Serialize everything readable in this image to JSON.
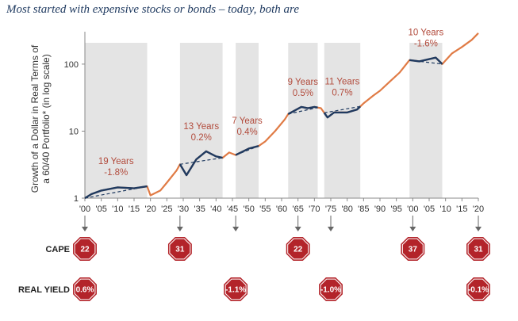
{
  "title": "Most started with expensive stocks or bonds – today, both are",
  "chart_data": {
    "type": "line",
    "title": "Most started with expensive stocks or bonds – today, both are",
    "ylabel": "Growth of a Dollar in Real Terms of a 60/40 Portfolio* (in log scale)",
    "yscale": "log",
    "ylim": [
      1,
      400
    ],
    "xlim": [
      1900,
      2020
    ],
    "x_ticks": [
      "'00",
      "'05",
      "'10",
      "'15",
      "'20",
      "'25",
      "'30",
      "'35",
      "'40",
      "'45",
      "'50",
      "'55",
      "'60",
      "'65",
      "'70",
      "'75",
      "'80",
      "'85",
      "'90",
      "'95",
      "'00",
      "'05",
      "'10",
      "'15",
      "'20"
    ],
    "y_ticks": [
      "1",
      "10",
      "100"
    ],
    "colors": {
      "growth": "#e07b45",
      "flat": "#1f3a60",
      "shade": "#e4e4e4",
      "sign": "#b3242a"
    },
    "series": [
      {
        "points": [
          [
            1900,
            1
          ],
          [
            1902,
            1.15
          ],
          [
            1905,
            1.3
          ],
          [
            1910,
            1.45
          ],
          [
            1915,
            1.4
          ],
          [
            1919,
            1.5
          ],
          [
            1920,
            1.1
          ],
          [
            1923,
            1.3
          ],
          [
            1925,
            1.7
          ],
          [
            1928,
            2.6
          ],
          [
            1929,
            3.2
          ],
          [
            1931,
            2.2
          ],
          [
            1934,
            3.8
          ],
          [
            1937,
            5
          ],
          [
            1940,
            4.2
          ],
          [
            1942,
            4
          ],
          [
            1944,
            4.8
          ],
          [
            1946,
            4.4
          ],
          [
            1950,
            5.5
          ],
          [
            1953,
            6
          ],
          [
            1955,
            7
          ],
          [
            1958,
            10
          ],
          [
            1961,
            15
          ],
          [
            1962,
            18
          ],
          [
            1966,
            23
          ],
          [
            1968,
            22
          ],
          [
            1970,
            23
          ],
          [
            1972,
            22
          ],
          [
            1974,
            16
          ],
          [
            1976,
            19
          ],
          [
            1980,
            19
          ],
          [
            1983,
            21
          ],
          [
            1985,
            26
          ],
          [
            1988,
            34
          ],
          [
            1990,
            40
          ],
          [
            1993,
            55
          ],
          [
            1996,
            75
          ],
          [
            1999,
            115
          ],
          [
            2002,
            110
          ],
          [
            2007,
            125
          ],
          [
            2009,
            100
          ],
          [
            2012,
            145
          ],
          [
            2015,
            180
          ],
          [
            2018,
            230
          ],
          [
            2020,
            290
          ]
        ]
      }
    ],
    "flat_periods": [
      {
        "start": 1900,
        "end": 1919,
        "years_label": "19 Years",
        "return_label": "-1.8%"
      },
      {
        "start": 1929,
        "end": 1942,
        "years_label": "13 Years",
        "return_label": "0.2%"
      },
      {
        "start": 1946,
        "end": 1953,
        "years_label": "7 Years",
        "return_label": "0.4%"
      },
      {
        "start": 1962,
        "end": 1971,
        "years_label": "9 Years",
        "return_label": "0.5%"
      },
      {
        "start": 1973,
        "end": 1984,
        "years_label": "11 Years",
        "return_label": "0.7%"
      },
      {
        "start": 1999,
        "end": 2009,
        "years_label": "10 Years",
        "return_label": "-1.6%"
      }
    ],
    "cape": {
      "label": "CAPE",
      "values": [
        {
          "x": 1900,
          "text": "22"
        },
        {
          "x": 1929,
          "text": "31"
        },
        {
          "x": 1965,
          "text": "22"
        },
        {
          "x": 2000,
          "text": "37"
        },
        {
          "x": 2020,
          "text": "31"
        }
      ]
    },
    "real_yield": {
      "label": "REAL YIELD",
      "values": [
        {
          "x": 1900,
          "text": "0.6%"
        },
        {
          "x": 1946,
          "text": "-1.1%"
        },
        {
          "x": 1975,
          "text": "-1.0%"
        },
        {
          "x": 2020,
          "text": "-0.1%"
        }
      ]
    },
    "arrows_x": [
      1900,
      1929,
      1946,
      1965,
      1975,
      2000,
      2020
    ],
    "grid": false,
    "legend": "none"
  }
}
